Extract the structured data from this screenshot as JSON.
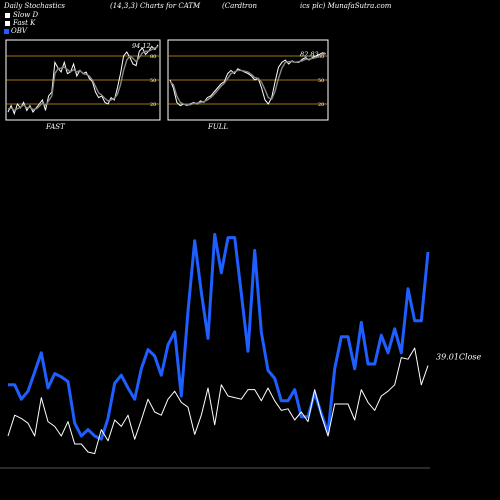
{
  "header": {
    "left": "Daily Stochastics",
    "middle": "(14,3,3) Charts for CATM",
    "right": "(Cardtron",
    "right2": "ics plc) MunafaSutra.com"
  },
  "legend": [
    {
      "label": "Slow  D",
      "color": "#ffffff"
    },
    {
      "label": "Fast K",
      "color": "#ffffff"
    },
    {
      "label": "OBV",
      "color": "#1f5fff"
    }
  ],
  "colors": {
    "obv": "#1f5fff",
    "close": "#ffffff",
    "threshold": "#d4a017",
    "panel_bg": "#000000"
  },
  "chart_data": [
    {
      "type": "line",
      "panel": "FAST",
      "label": "FAST",
      "last_value_label": "94.12",
      "ylim": [
        0,
        100
      ],
      "yticks": [
        20,
        50,
        80
      ],
      "ytick_labels": [
        "20",
        "50",
        "80"
      ],
      "thresholds": [
        20,
        50,
        80
      ],
      "series": [
        {
          "name": "Fast K",
          "values": [
            10,
            18,
            8,
            20,
            15,
            22,
            12,
            18,
            10,
            15,
            20,
            25,
            12,
            30,
            35,
            72,
            65,
            60,
            72,
            58,
            60,
            70,
            55,
            62,
            58,
            60,
            52,
            48,
            35,
            28,
            30,
            22,
            20,
            28,
            25,
            40,
            58,
            80,
            85,
            78,
            70,
            68,
            86,
            90,
            82,
            86,
            92,
            88,
            94
          ]
        },
        {
          "name": "Slow D",
          "values": [
            14,
            15,
            12,
            14,
            16,
            19,
            15,
            16,
            13,
            14,
            17,
            21,
            18,
            24,
            30,
            58,
            64,
            65,
            66,
            63,
            60,
            63,
            60,
            62,
            58,
            57,
            55,
            50,
            42,
            34,
            31,
            27,
            24,
            25,
            27,
            32,
            44,
            62,
            75,
            80,
            77,
            73,
            78,
            84,
            86,
            86,
            88,
            90,
            92
          ]
        }
      ]
    },
    {
      "type": "line",
      "panel": "FULL",
      "label": "FULL",
      "last_value_label": "82.83",
      "ylim": [
        0,
        100
      ],
      "yticks": [
        20,
        50,
        80
      ],
      "ytick_labels": [
        "20",
        "50",
        "80"
      ],
      "thresholds": [
        20,
        50,
        80
      ],
      "series": [
        {
          "name": "Fast K",
          "values": [
            50,
            40,
            22,
            18,
            20,
            18,
            20,
            22,
            20,
            24,
            22,
            28,
            30,
            35,
            40,
            45,
            48,
            58,
            62,
            58,
            64,
            62,
            60,
            58,
            55,
            50,
            52,
            40,
            25,
            20,
            28,
            48,
            66,
            72,
            75,
            70,
            74,
            72,
            72,
            76,
            78,
            75,
            78,
            80,
            82,
            84,
            83
          ]
        },
        {
          "name": "Slow D",
          "values": [
            48,
            44,
            30,
            22,
            20,
            19,
            19,
            21,
            21,
            22,
            23,
            25,
            28,
            32,
            37,
            42,
            46,
            52,
            58,
            60,
            62,
            62,
            61,
            60,
            57,
            53,
            52,
            47,
            38,
            28,
            26,
            36,
            52,
            65,
            72,
            73,
            73,
            72,
            73,
            74,
            76,
            76,
            77,
            78,
            80,
            82,
            83
          ]
        }
      ]
    },
    {
      "type": "line",
      "panel": "OBV",
      "last_value_label": "39.01Close",
      "series": [
        {
          "name": "OBV",
          "values": [
            52,
            52,
            43,
            48,
            60,
            72,
            50,
            59,
            57,
            54,
            28,
            20,
            24,
            20,
            18,
            31,
            53,
            58,
            50,
            43,
            62,
            74,
            70,
            58,
            77,
            85,
            45,
            98,
            142,
            110,
            81,
            146,
            122,
            144,
            144,
            109,
            73,
            136,
            85,
            61,
            56,
            42,
            42,
            49,
            32,
            32,
            47,
            34,
            22,
            62,
            82,
            82,
            62,
            91,
            65,
            65,
            83,
            72,
            87,
            72,
            112,
            92,
            92,
            135
          ]
        },
        {
          "name": "Close",
          "values": [
            20,
            33,
            31,
            28,
            20,
            44,
            29,
            26,
            20,
            29,
            15,
            15,
            10,
            9,
            24,
            17,
            30,
            26,
            33,
            18,
            30,
            43,
            35,
            33,
            43,
            48,
            41,
            38,
            21,
            33,
            50,
            27,
            52,
            45,
            44,
            43,
            49,
            49,
            42,
            50,
            42,
            36,
            37,
            30,
            35,
            29,
            49,
            33,
            20,
            40,
            40,
            40,
            30,
            49,
            41,
            36,
            45,
            48,
            52,
            69,
            68,
            75,
            52,
            64
          ]
        }
      ]
    }
  ]
}
